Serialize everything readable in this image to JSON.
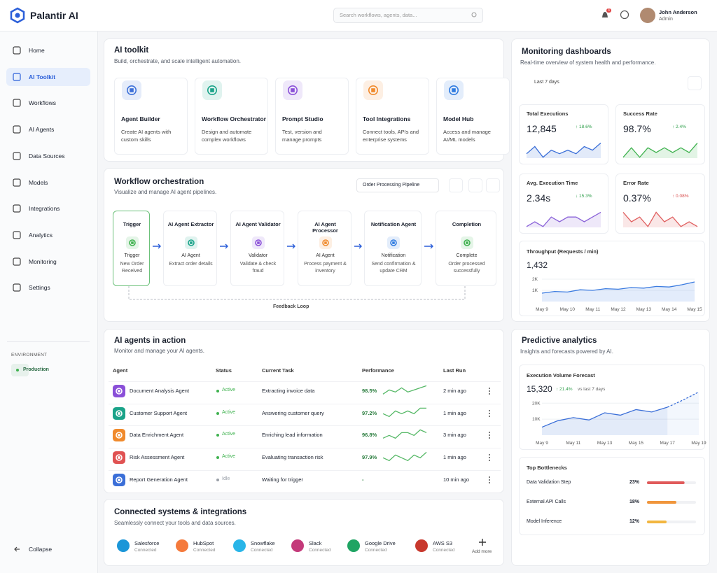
{
  "header": {
    "brand": "Palantir AI",
    "search_placeholder": "Search workflows, agents, data...",
    "notifications": 3,
    "user": {
      "name": "John Anderson",
      "role": "Admin"
    }
  },
  "sidebar": {
    "nav": [
      "Home",
      "AI Toolkit",
      "Workflows",
      "AI Agents",
      "Data Sources",
      "Models",
      "Integrations",
      "Analytics",
      "Monitoring",
      "Settings"
    ],
    "environment_label": "ENVIRONMENT",
    "environment": "Production",
    "collapse": "Collapse"
  },
  "toolkit": {
    "title": "AI toolkit",
    "subtitle": "Build, orchestrate, and scale intelligent automation.",
    "cards": [
      {
        "title": "Agent Builder",
        "desc": "Create AI agents with custom skills",
        "color": "#3b6fd8"
      },
      {
        "title": "Workflow Orchestrator",
        "desc": "Design and automate complex workflows",
        "color": "#1aa389"
      },
      {
        "title": "Prompt Studio",
        "desc": "Test, version and manage prompts",
        "color": "#8a4fd8"
      },
      {
        "title": "Tool Integrations",
        "desc": "Connect tools, APIs and enterprise systems",
        "color": "#f08a2c"
      },
      {
        "title": "Model Hub",
        "desc": "Access and manage AI/ML models",
        "color": "#2f7be0"
      }
    ]
  },
  "workflow": {
    "title": "Workflow orchestration",
    "subtitle": "Visualize and manage AI agent pipelines.",
    "pipeline": "Order Processing Pipeline",
    "loop": "Feedback Loop",
    "steps": [
      {
        "title": "Trigger",
        "label": "Trigger",
        "desc": "New Order Received",
        "color": "#3fb24f"
      },
      {
        "title": "AI Agent Extractor",
        "label": "AI Agent",
        "desc": "Extract order details",
        "color": "#1aa389"
      },
      {
        "title": "AI Agent Validator",
        "label": "Validator",
        "desc": "Validate & check fraud",
        "color": "#8a4fd8"
      },
      {
        "title": "AI Agent Processor",
        "label": "AI Agent",
        "desc": "Process payment & inventory",
        "color": "#f08a2c"
      },
      {
        "title": "Notification Agent",
        "label": "Notification",
        "desc": "Send confirmation & update CRM",
        "color": "#2f7be0"
      },
      {
        "title": "Completion",
        "label": "Complete",
        "desc": "Order processed successfully",
        "color": "#3fb24f"
      }
    ]
  },
  "agents": {
    "title": "AI agents in action",
    "subtitle": "Monitor and manage your AI agents.",
    "columns": [
      "Agent",
      "Status",
      "Current Task",
      "Performance",
      "Last Run"
    ],
    "rows": [
      {
        "name": "Document Analysis Agent",
        "status": "Active",
        "status_color": "#3fb24f",
        "task": "Extracting invoice data",
        "performance": "98.5%",
        "last_run": "2 min ago",
        "color": "#8a4fd8",
        "trend": [
          4,
          6,
          5,
          7,
          5,
          6,
          7,
          8
        ]
      },
      {
        "name": "Customer Support Agent",
        "status": "Active",
        "status_color": "#3fb24f",
        "task": "Answering customer query",
        "performance": "97.2%",
        "last_run": "1 min ago",
        "color": "#1aa389",
        "trend": [
          5,
          4,
          6,
          5,
          6,
          5,
          7,
          7
        ]
      },
      {
        "name": "Data Enrichment Agent",
        "status": "Active",
        "status_color": "#3fb24f",
        "task": "Enriching lead information",
        "performance": "96.8%",
        "last_run": "3 min ago",
        "color": "#f08a2c",
        "trend": [
          4,
          5,
          4,
          6,
          6,
          5,
          7,
          6
        ]
      },
      {
        "name": "Risk Assessment Agent",
        "status": "Active",
        "status_color": "#3fb24f",
        "task": "Evaluating transaction risk",
        "performance": "97.9%",
        "last_run": "1 min ago",
        "color": "#e05252",
        "trend": [
          5,
          4,
          6,
          5,
          4,
          6,
          5,
          7
        ]
      },
      {
        "name": "Report Generation Agent",
        "status": "Idle",
        "status_color": "#9aa0a8",
        "task": "Waiting for trigger",
        "performance": "-",
        "last_run": "10 min ago",
        "color": "#3b6fd8",
        "trend": []
      }
    ]
  },
  "integrations": {
    "title": "Connected systems & integrations",
    "subtitle": "Seamlessly connect your tools and data sources.",
    "add": "Add more",
    "items": [
      {
        "name": "Salesforce",
        "status": "Connected",
        "color": "#1b96d8"
      },
      {
        "name": "HubSpot",
        "status": "Connected",
        "color": "#f57a3c"
      },
      {
        "name": "Snowflake",
        "status": "Connected",
        "color": "#29b5e8"
      },
      {
        "name": "Slack",
        "status": "Connected",
        "color": "#c43a7a"
      },
      {
        "name": "Google Drive",
        "status": "Connected",
        "color": "#1fa463"
      },
      {
        "name": "AWS S3",
        "status": "Connected",
        "color": "#c8382d"
      }
    ]
  },
  "monitoring": {
    "title": "Monitoring dashboards",
    "subtitle": "Real-time overview of system health and performance.",
    "range": "Last 7 days",
    "kpis": [
      {
        "label": "Total Executions",
        "value": "12,845",
        "change": "↑ 18.6%",
        "change_color": "#2e9e4a",
        "color": "#3b6fd8",
        "trend": [
          5,
          7,
          4,
          6,
          5,
          6,
          5,
          7,
          6,
          8
        ]
      },
      {
        "label": "Success Rate",
        "value": "98.7%",
        "change": "↑ 2.4%",
        "change_color": "#2e9e4a",
        "color": "#3fb24f",
        "trend": [
          4,
          6,
          4,
          6,
          5,
          6,
          5,
          6,
          5,
          7
        ]
      },
      {
        "label": "Avg. Execution Time",
        "value": "2.34s",
        "change": "↓ 15.3%",
        "change_color": "#2e9e4a",
        "color": "#8a62d8",
        "trend": [
          3,
          4,
          3,
          5,
          4,
          5,
          5,
          4,
          5,
          6
        ]
      },
      {
        "label": "Error Rate",
        "value": "0.37%",
        "change": "↑ 0.08%",
        "change_color": "#d84a4a",
        "color": "#e06060",
        "trend": [
          6,
          4,
          5,
          3,
          6,
          4,
          5,
          3,
          4,
          3
        ]
      }
    ],
    "throughput": {
      "type": "line",
      "title": "Throughput (Requests / min)",
      "value": "1,432",
      "color": "#3b7be0",
      "categories": [
        "May 9",
        null,
        "May 10",
        null,
        "May 11",
        null,
        "May 12",
        null,
        "May 13",
        null,
        "May 14",
        null,
        "May 15"
      ],
      "values": [
        750,
        900,
        850,
        1050,
        1000,
        1150,
        1100,
        1250,
        1200,
        1350,
        1300,
        1500,
        1750
      ],
      "ylim": [
        0,
        2500
      ],
      "yticks": [
        {
          "value": 1000,
          "label": "1K"
        },
        {
          "value": 2000,
          "label": "2K"
        }
      ]
    }
  },
  "predictive": {
    "title": "Predictive analytics",
    "subtitle": "Insights and forecasts powered by AI.",
    "forecast": {
      "type": "line",
      "title": "Execution Volume Forecast",
      "value": "15,320",
      "change": "↑ 21.4%",
      "note": "vs last 7 days",
      "color": "#3b6fd8",
      "categories": [
        "May 9",
        null,
        "May 11",
        null,
        "May 13",
        null,
        "May 15",
        null,
        "May 17",
        null,
        "May 19"
      ],
      "values": [
        5000,
        9000,
        11000,
        9500,
        14000,
        12500,
        16000,
        14500,
        17500,
        null,
        null
      ],
      "forecast": [
        null,
        null,
        null,
        null,
        null,
        null,
        null,
        null,
        17500,
        22000,
        27000
      ],
      "ylim": [
        0,
        28000
      ],
      "yticks": [
        {
          "value": 10000,
          "label": "10K"
        },
        {
          "value": 20000,
          "label": "20K"
        }
      ]
    },
    "bottlenecks": {
      "title": "Top Bottlenecks",
      "xlim": [
        0,
        30
      ],
      "items": [
        {
          "name": "Data Validation Step",
          "value": 23,
          "label": "23%",
          "color": "#e05a5a"
        },
        {
          "name": "External API Calls",
          "value": 18,
          "label": "18%",
          "color": "#f0963c"
        },
        {
          "name": "Model Inference",
          "value": 12,
          "label": "12%",
          "color": "#f2b640"
        }
      ]
    }
  }
}
